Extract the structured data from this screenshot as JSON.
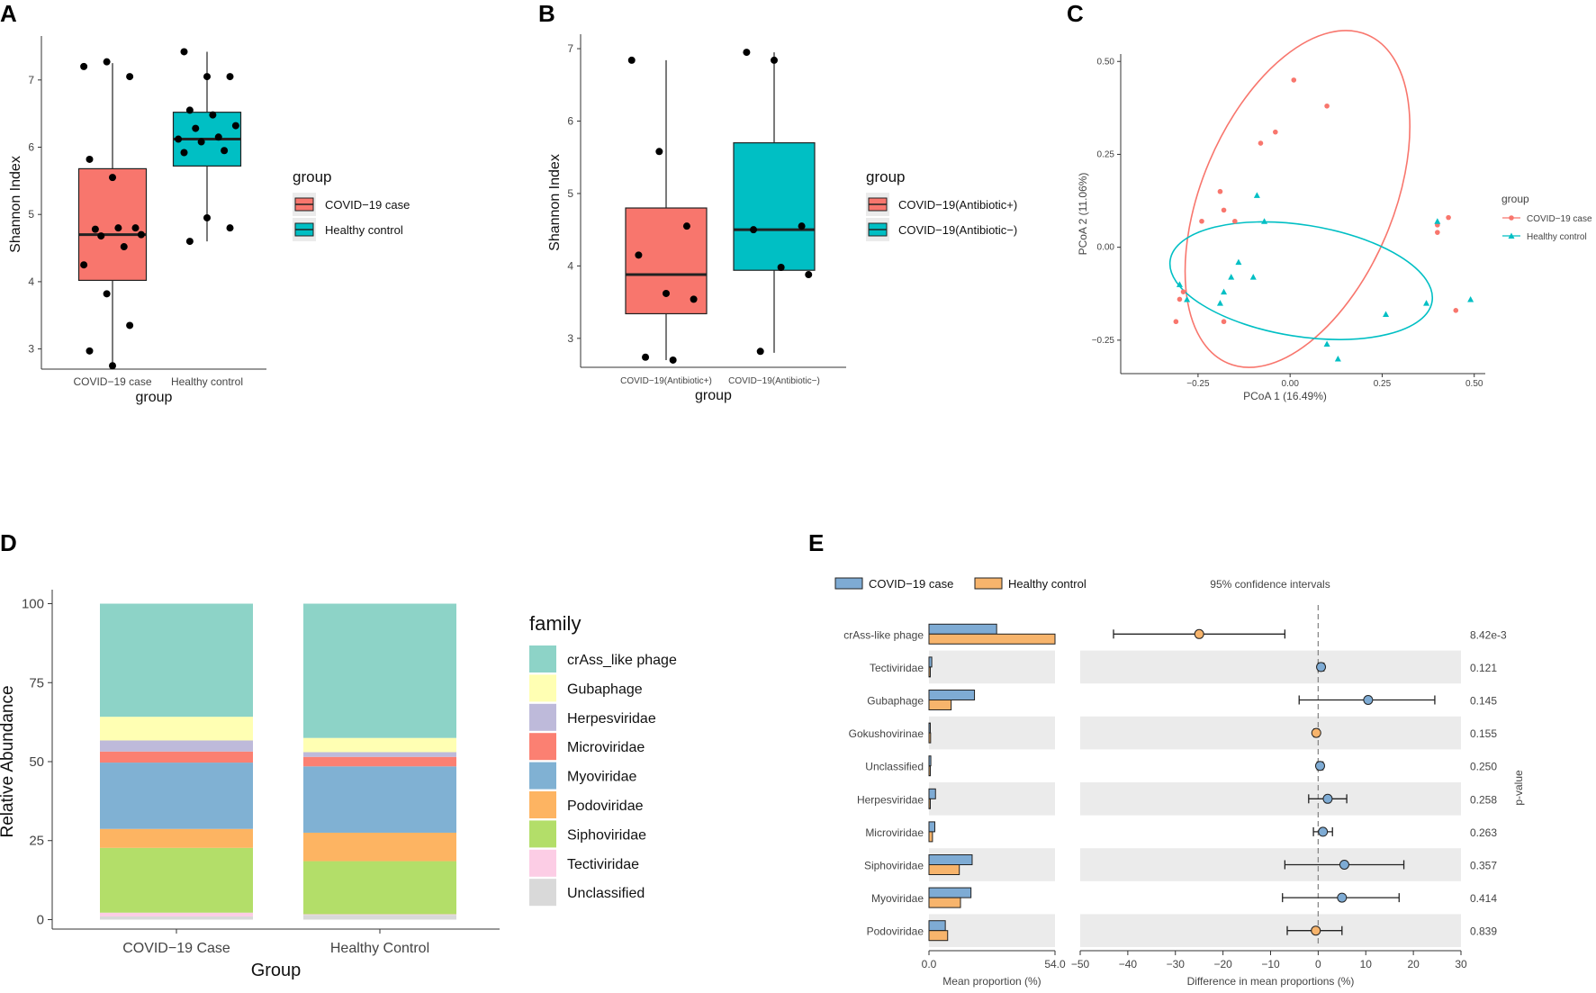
{
  "chart_data": [
    {
      "panel": "A",
      "type": "box",
      "ylabel": "Shannon Index",
      "xlabel": "group",
      "ylim": [
        2.7,
        7.6
      ],
      "yticks": [
        3,
        4,
        5,
        6,
        7
      ],
      "categories": [
        "COVID−19 case",
        "Healthy control"
      ],
      "boxes": [
        {
          "name": "COVID−19 case",
          "color": "#F8766D",
          "whisker_low": 2.75,
          "q1": 4.02,
          "median": 4.7,
          "q3": 5.68,
          "whisker_high": 7.25,
          "points": [
            7.2,
            7.27,
            7.05,
            5.82,
            5.55,
            4.8,
            4.78,
            4.8,
            4.7,
            4.68,
            4.52,
            4.25,
            3.82,
            3.35,
            2.97,
            2.75
          ]
        },
        {
          "name": "Healthy control",
          "color": "#00BFC4",
          "whisker_low": 4.6,
          "q1": 5.72,
          "median": 6.12,
          "q3": 6.52,
          "whisker_high": 7.42,
          "points": [
            7.42,
            7.05,
            7.05,
            6.55,
            6.48,
            6.32,
            6.28,
            6.15,
            6.12,
            6.08,
            5.95,
            5.92,
            4.95,
            4.8,
            4.6
          ]
        }
      ],
      "legend": {
        "title": "group",
        "entries": [
          "COVID−19 case",
          "Healthy control"
        ]
      }
    },
    {
      "panel": "B",
      "type": "box",
      "ylabel": "Shannon Index",
      "xlabel": "group",
      "ylim": [
        2.6,
        7.15
      ],
      "yticks": [
        3,
        4,
        5,
        6,
        7
      ],
      "categories": [
        "COVID−19(Antibiotic+)",
        "COVID−19(Antibiotic−)"
      ],
      "boxes": [
        {
          "name": "COVID−19(Antibiotic+)",
          "color": "#F8766D",
          "whisker_low": 2.7,
          "q1": 3.34,
          "median": 3.88,
          "q3": 4.8,
          "whisker_high": 6.84,
          "points": [
            6.84,
            5.58,
            4.55,
            4.15,
            3.62,
            3.54,
            2.74,
            2.7
          ]
        },
        {
          "name": "COVID−19(Antibiotic−)",
          "color": "#00BFC4",
          "whisker_low": 2.8,
          "q1": 3.94,
          "median": 4.5,
          "q3": 5.7,
          "whisker_high": 6.95,
          "points": [
            6.95,
            6.84,
            4.55,
            4.5,
            3.98,
            3.88,
            2.82
          ]
        }
      ],
      "legend": {
        "title": "group",
        "entries": [
          "COVID−19(Antibiotic+)",
          "COVID−19(Antibiotic−)"
        ]
      }
    },
    {
      "panel": "C",
      "type": "scatter",
      "xlabel": "PCoA 1 (16.49%)",
      "ylabel": "PCoA 2 (11.06%)",
      "xlim": [
        -0.46,
        0.53
      ],
      "ylim": [
        -0.34,
        0.52
      ],
      "xticks": [
        "−0.25",
        "0.00",
        "0.25",
        "0.50"
      ],
      "xtick_values": [
        -0.25,
        0,
        0.25,
        0.5
      ],
      "yticks": [
        "−0.25",
        "0.00",
        "0.25",
        "0.50"
      ],
      "ytick_values": [
        -0.25,
        0,
        0.25,
        0.5
      ],
      "series": [
        {
          "name": "COVID−19 case",
          "color": "#F8766D",
          "marker": "circle",
          "points": [
            [
              0.01,
              0.45
            ],
            [
              0.1,
              0.38
            ],
            [
              -0.04,
              0.31
            ],
            [
              -0.08,
              0.28
            ],
            [
              -0.19,
              0.15
            ],
            [
              -0.18,
              0.1
            ],
            [
              -0.24,
              0.07
            ],
            [
              -0.15,
              0.07
            ],
            [
              -0.31,
              -0.2
            ],
            [
              -0.3,
              -0.14
            ],
            [
              -0.29,
              -0.12
            ],
            [
              -0.18,
              -0.2
            ],
            [
              0.4,
              0.06
            ],
            [
              0.4,
              0.04
            ],
            [
              0.43,
              0.08
            ],
            [
              0.45,
              -0.17
            ]
          ]
        },
        {
          "name": "Healthy control",
          "color": "#00BFC4",
          "marker": "triangle",
          "points": [
            [
              -0.09,
              0.14
            ],
            [
              -0.07,
              0.07
            ],
            [
              -0.14,
              -0.04
            ],
            [
              -0.16,
              -0.08
            ],
            [
              -0.1,
              -0.08
            ],
            [
              -0.3,
              -0.1
            ],
            [
              -0.28,
              -0.14
            ],
            [
              -0.18,
              -0.12
            ],
            [
              -0.19,
              -0.15
            ],
            [
              0.1,
              -0.26
            ],
            [
              0.13,
              -0.3
            ],
            [
              0.26,
              -0.18
            ],
            [
              0.37,
              -0.15
            ],
            [
              0.4,
              0.07
            ],
            [
              0.49,
              -0.14
            ]
          ]
        }
      ],
      "ellipses": [
        {
          "series": "COVID−19 case",
          "color": "#F8766D",
          "cx": 0.02,
          "cy": 0.13,
          "rx": 0.26,
          "ry": 0.48,
          "rotate": 23
        },
        {
          "series": "Healthy control",
          "color": "#00BFC4",
          "cx": 0.03,
          "cy": -0.09,
          "rx": 0.36,
          "ry": 0.15,
          "rotate": 9
        }
      ],
      "legend": {
        "title": "group",
        "entries": [
          "COVID−19 case",
          "Healthy control"
        ]
      }
    },
    {
      "panel": "D",
      "type": "stacked_bar",
      "ylabel": "Relative Abundance",
      "xlabel": "Group",
      "ylim": [
        0,
        100
      ],
      "yticks": [
        0,
        25,
        50,
        75,
        100
      ],
      "categories": [
        "COVID−19 Case",
        "Healthy Control"
      ],
      "series": [
        {
          "name": "Unclassified",
          "color": "#D9D9D9",
          "values": [
            1,
            1.5
          ]
        },
        {
          "name": "Tectiviridae",
          "color": "#FCCDE5",
          "values": [
            1.2,
            0.2
          ]
        },
        {
          "name": "Siphoviridae",
          "color": "#B3DE69",
          "values": [
            20.5,
            16.8
          ]
        },
        {
          "name": "Podoviridae",
          "color": "#FDB462",
          "values": [
            6,
            9
          ]
        },
        {
          "name": "Myoviridae",
          "color": "#80B1D3",
          "values": [
            21,
            21
          ]
        },
        {
          "name": "Microviridae",
          "color": "#FB8072",
          "values": [
            3.5,
            3
          ]
        },
        {
          "name": "Herpesviridae",
          "color": "#BEBADA",
          "values": [
            3.5,
            1.5
          ]
        },
        {
          "name": "Gubaphage",
          "color": "#FFFFB3",
          "values": [
            7.5,
            4.5
          ]
        },
        {
          "name": "crAss_like phage",
          "color": "#8DD3C7",
          "values": [
            35.8,
            42.5
          ]
        }
      ],
      "legend": {
        "title": "family",
        "entries": [
          "crAss_like phage",
          "Gubaphage",
          "Herpesviridae",
          "Microviridae",
          "Myoviridae",
          "Podoviridae",
          "Siphoviridae",
          "Tectiviridae",
          "Unclassified"
        ]
      }
    },
    {
      "panel": "E",
      "type": "extended_error_bar",
      "bar_xlabel": "Mean proportion (%)",
      "bar_xlim": [
        0,
        54
      ],
      "bar_xticks": [
        "0.0",
        "54.0"
      ],
      "ci_xlabel": "Difference in mean proportions (%)",
      "ci_xlim": [
        -50,
        30
      ],
      "ci_xticks": [
        "−50",
        "−40",
        "−30",
        "−20",
        "−10",
        "0",
        "10",
        "20",
        "30"
      ],
      "ci_tick_values": [
        -50,
        -40,
        -30,
        -20,
        -10,
        0,
        10,
        20,
        30
      ],
      "ci_title": "95% confidence intervals",
      "pvalue_label": "p-value",
      "legend": {
        "entries": [
          "COVID−19 case",
          "Healthy control"
        ],
        "colors": [
          "#7EABD4",
          "#F7B46C"
        ]
      },
      "rows": [
        {
          "name": "crAss-like phage",
          "covid": 29,
          "healthy": 54,
          "diff": -25,
          "lo": -43,
          "hi": -7,
          "favored": "healthy",
          "p": "8.42e-3"
        },
        {
          "name": "Tectiviridae",
          "covid": 1.2,
          "healthy": 0.2,
          "diff": 0.6,
          "lo": 0,
          "hi": 1.2,
          "favored": "covid",
          "p": "0.121"
        },
        {
          "name": "Gubaphage",
          "covid": 19.5,
          "healthy": 9.5,
          "diff": 10.5,
          "lo": -4,
          "hi": 24.5,
          "favored": "covid",
          "p": "0.145"
        },
        {
          "name": "Gokushovirinae",
          "covid": 0.5,
          "healthy": 0.7,
          "diff": -0.4,
          "lo": -0.9,
          "hi": 0.1,
          "favored": "healthy",
          "p": "0.155"
        },
        {
          "name": "Unclassified",
          "covid": 0.8,
          "healthy": 0.2,
          "diff": 0.4,
          "lo": -0.2,
          "hi": 1,
          "favored": "covid",
          "p": "0.250"
        },
        {
          "name": "Herpesviridae",
          "covid": 2.8,
          "healthy": 0.4,
          "diff": 2,
          "lo": -2,
          "hi": 6,
          "favored": "covid",
          "p": "0.258"
        },
        {
          "name": "Microviridae",
          "covid": 2.5,
          "healthy": 1.5,
          "diff": 1,
          "lo": -1,
          "hi": 3,
          "favored": "covid",
          "p": "0.263"
        },
        {
          "name": "Siphoviridae",
          "covid": 18.5,
          "healthy": 13,
          "diff": 5.5,
          "lo": -7,
          "hi": 18,
          "favored": "covid",
          "p": "0.357"
        },
        {
          "name": "Myoviridae",
          "covid": 18,
          "healthy": 13.5,
          "diff": 5,
          "lo": -7.5,
          "hi": 17,
          "favored": "covid",
          "p": "0.414"
        },
        {
          "name": "Podoviridae",
          "covid": 7,
          "healthy": 8,
          "diff": -0.5,
          "lo": -6.5,
          "hi": 5,
          "favored": "healthy",
          "p": "0.839"
        }
      ]
    }
  ]
}
